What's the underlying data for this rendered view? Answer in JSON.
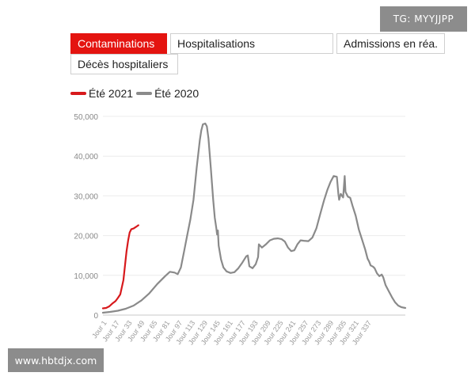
{
  "watermark_top": "TG: MYYJJPP",
  "watermark_bottom": "www.hbtdjx.com",
  "tabs": [
    {
      "label": "Contaminations",
      "active": true
    },
    {
      "label": "Hospitalisations",
      "active": false
    },
    {
      "label": "Admissions en réa.",
      "active": false
    },
    {
      "label": "Décès hospitaliers",
      "active": false
    }
  ],
  "chart_data": {
    "type": "line",
    "ylim": [
      0,
      50000
    ],
    "y_ticks": [
      0,
      10000,
      20000,
      30000,
      40000,
      50000
    ],
    "y_tick_labels": [
      "0",
      "10,000",
      "20,000",
      "30,000",
      "40,000",
      "50,000"
    ],
    "x_range": [
      1,
      385
    ],
    "x_ticks": [
      1,
      17,
      33,
      49,
      65,
      81,
      97,
      113,
      129,
      145,
      161,
      177,
      193,
      209,
      225,
      241,
      257,
      273,
      289,
      305,
      321,
      337
    ],
    "x_tick_labels": [
      "Jour 1",
      "Jour 17",
      "Jour 33",
      "Jour 49",
      "Jour 65",
      "Jour 81",
      "Jour 97",
      "Jour 113",
      "Jour 129",
      "Jour 145",
      "Jour 161",
      "Jour 177",
      "Jour 193",
      "Jour 209",
      "Jour 225",
      "Jour 241",
      "Jour 257",
      "Jour 273",
      "Jour 289",
      "Jour 305",
      "Jour 321",
      "Jour 337"
    ],
    "grid": true,
    "legend_position": "top-left",
    "series": [
      {
        "name": "Été 2021",
        "color": "#d7191c",
        "points": [
          [
            1,
            1700
          ],
          [
            5,
            1800
          ],
          [
            9,
            2200
          ],
          [
            13,
            2900
          ],
          [
            17,
            3500
          ],
          [
            20,
            4300
          ],
          [
            23,
            5200
          ],
          [
            25,
            7000
          ],
          [
            27,
            8800
          ],
          [
            29,
            12500
          ],
          [
            31,
            16000
          ],
          [
            33,
            18700
          ],
          [
            35,
            20800
          ],
          [
            37,
            21600
          ],
          [
            40,
            21800
          ],
          [
            43,
            22200
          ],
          [
            46,
            22600
          ]
        ]
      },
      {
        "name": "Été 2020",
        "color": "#8a8a8a",
        "points": [
          [
            1,
            600
          ],
          [
            10,
            800
          ],
          [
            20,
            1100
          ],
          [
            30,
            1600
          ],
          [
            40,
            2400
          ],
          [
            50,
            3700
          ],
          [
            60,
            5500
          ],
          [
            70,
            7800
          ],
          [
            80,
            9800
          ],
          [
            86,
            10900
          ],
          [
            92,
            10700
          ],
          [
            96,
            10300
          ],
          [
            100,
            12000
          ],
          [
            104,
            16000
          ],
          [
            108,
            20000
          ],
          [
            112,
            24000
          ],
          [
            116,
            29000
          ],
          [
            120,
            37000
          ],
          [
            124,
            44000
          ],
          [
            126,
            46500
          ],
          [
            128,
            48000
          ],
          [
            131,
            48200
          ],
          [
            133,
            47500
          ],
          [
            135,
            44500
          ],
          [
            138,
            37000
          ],
          [
            141,
            29000
          ],
          [
            143,
            24500
          ],
          [
            145,
            21800
          ],
          [
            146,
            20300
          ],
          [
            147,
            21300
          ],
          [
            148,
            17500
          ],
          [
            151,
            14000
          ],
          [
            154,
            12000
          ],
          [
            158,
            11000
          ],
          [
            163,
            10600
          ],
          [
            168,
            10800
          ],
          [
            173,
            11800
          ],
          [
            178,
            13200
          ],
          [
            183,
            14800
          ],
          [
            185,
            15000
          ],
          [
            187,
            12300
          ],
          [
            191,
            11800
          ],
          [
            195,
            12800
          ],
          [
            198,
            14600
          ],
          [
            199,
            17800
          ],
          [
            203,
            17000
          ],
          [
            208,
            17800
          ],
          [
            213,
            18800
          ],
          [
            218,
            19200
          ],
          [
            223,
            19300
          ],
          [
            228,
            19100
          ],
          [
            232,
            18500
          ],
          [
            236,
            17000
          ],
          [
            240,
            16100
          ],
          [
            244,
            16300
          ],
          [
            248,
            17800
          ],
          [
            252,
            18800
          ],
          [
            256,
            18700
          ],
          [
            262,
            18600
          ],
          [
            267,
            19500
          ],
          [
            272,
            21800
          ],
          [
            277,
            25500
          ],
          [
            282,
            29000
          ],
          [
            286,
            31500
          ],
          [
            290,
            33500
          ],
          [
            294,
            35000
          ],
          [
            298,
            34800
          ],
          [
            300,
            30500
          ],
          [
            301,
            29000
          ],
          [
            303,
            30500
          ],
          [
            306,
            29600
          ],
          [
            308,
            35000
          ],
          [
            309,
            31000
          ],
          [
            312,
            29800
          ],
          [
            315,
            29500
          ],
          [
            318,
            27500
          ],
          [
            322,
            25000
          ],
          [
            326,
            21500
          ],
          [
            330,
            19000
          ],
          [
            334,
            16500
          ],
          [
            337,
            14200
          ],
          [
            339,
            13500
          ],
          [
            341,
            12500
          ],
          [
            344,
            12200
          ],
          [
            346,
            11800
          ],
          [
            349,
            10500
          ],
          [
            352,
            9800
          ],
          [
            355,
            10200
          ],
          [
            357,
            9500
          ],
          [
            360,
            7500
          ],
          [
            364,
            6000
          ],
          [
            368,
            4500
          ],
          [
            372,
            3200
          ],
          [
            376,
            2400
          ],
          [
            380,
            2000
          ],
          [
            385,
            1800
          ]
        ]
      }
    ]
  }
}
